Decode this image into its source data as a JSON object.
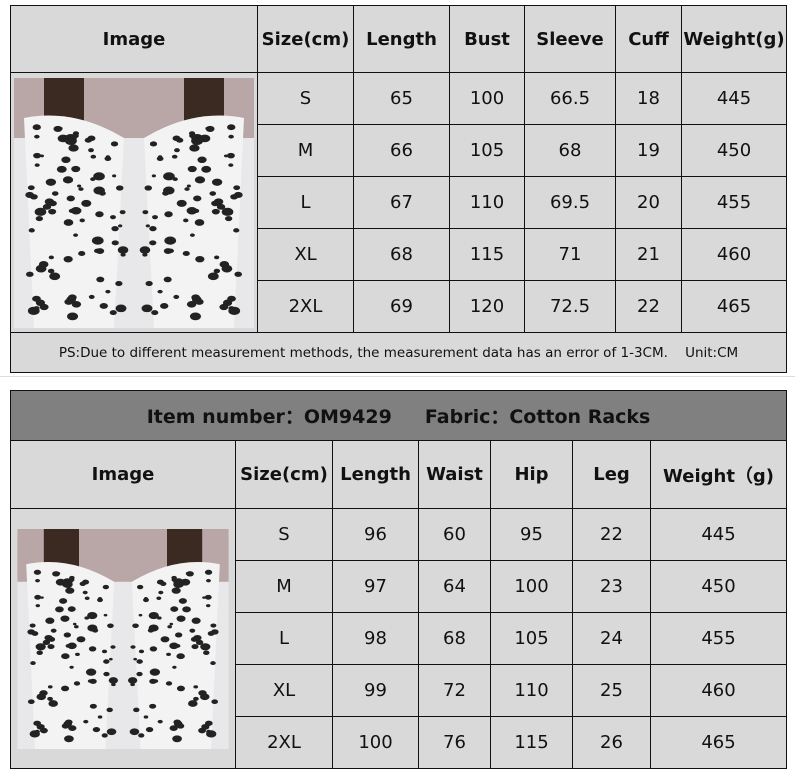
{
  "top_table": {
    "headers": [
      "Image",
      "Size(cm)",
      "Length",
      "Bust",
      "Sleeve",
      "Cuff",
      "Weight(g)"
    ],
    "rows": [
      [
        "S",
        "65",
        "100",
        "66.5",
        "18",
        "445"
      ],
      [
        "M",
        "66",
        "105",
        "68",
        "19",
        "450"
      ],
      [
        "L",
        "67",
        "110",
        "69.5",
        "20",
        "455"
      ],
      [
        "XL",
        "68",
        "115",
        "71",
        "21",
        "460"
      ],
      [
        "2XL",
        "69",
        "120",
        "72.5",
        "22",
        "465"
      ]
    ],
    "note": "PS:Due to different measurement methods, the measurement data has an error of 1-3CM.    Unit:CM"
  },
  "bottom_table": {
    "item_number": "Item number：OM9429",
    "fabric": "Fabric：Cotton Racks",
    "headers": [
      "Image",
      "Size(cm)",
      "Length",
      "Waist",
      "Hip",
      "Leg",
      "Weight（g)"
    ],
    "rows": [
      [
        "S",
        "96",
        "60",
        "95",
        "22",
        "445"
      ],
      [
        "M",
        "97",
        "64",
        "100",
        "23",
        "450"
      ],
      [
        "L",
        "98",
        "68",
        "105",
        "24",
        "455"
      ],
      [
        "XL",
        "99",
        "72",
        "110",
        "25",
        "460"
      ],
      [
        "2XL",
        "100",
        "76",
        "115",
        "26",
        "465"
      ]
    ]
  },
  "colors": {
    "cell_bg": "#d9d9d9",
    "title_bg": "#808080"
  },
  "image_alt": "leopard-print-outfit-photo"
}
